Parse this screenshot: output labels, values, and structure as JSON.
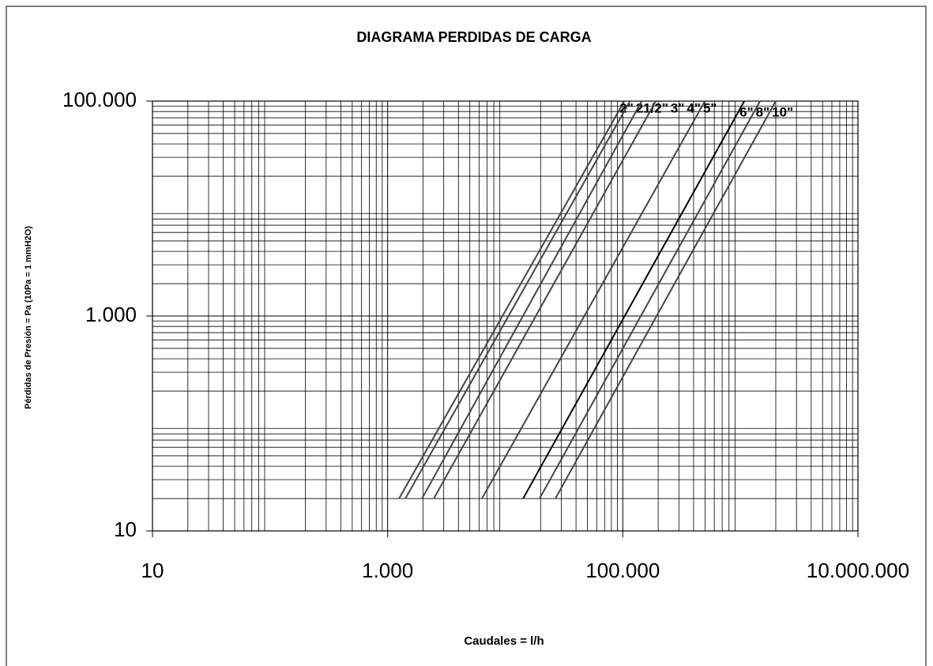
{
  "chart_data": {
    "type": "line",
    "title": "DIAGRAMA PERDIDAS DE CARGA",
    "x_label": "Caudales = l/h",
    "y_label": "Pérdidas de Presión = Pa (10Pa = 1 mmH2O)",
    "xscale": "log",
    "yscale": "log",
    "grid": true,
    "minor_grid": true,
    "xlim": [
      10,
      10000000
    ],
    "ylim": [
      10,
      100000
    ],
    "xticks": [
      10,
      {
        "value": 1000,
        "label": "1.000"
      },
      {
        "value": 100000,
        "label": "100.000"
      },
      {
        "value": 10000000,
        "label": "10.000.000"
      }
    ],
    "yticks": [
      10,
      {
        "value": 1000,
        "label": "1.000"
      },
      {
        "value": 100000,
        "label": "100.000"
      }
    ],
    "series": [
      {
        "name": "2\"",
        "color": "#444444",
        "x": [
          1250,
          103000
        ],
        "values": [
          20,
          100000
        ]
      },
      {
        "name": "21/2\"",
        "color": "#444444",
        "x": [
          1415,
          115000
        ],
        "values": [
          20,
          100000
        ]
      },
      {
        "name": "3\"",
        "color": "#444444",
        "x": [
          1960,
          145000
        ],
        "values": [
          20,
          100000
        ]
      },
      {
        "name": "4\"",
        "color": "#444444",
        "x": [
          2470,
          191000
        ],
        "values": [
          20,
          100000
        ]
      },
      {
        "name": "5\"",
        "color": "#444444",
        "x": [
          6340,
          499000
        ],
        "values": [
          20,
          100000
        ]
      },
      {
        "name": "6\"",
        "color": "#000000",
        "x": [
          14200,
          1080000
        ],
        "values": [
          20,
          100000
        ]
      },
      {
        "name": "8\"",
        "color": "#444444",
        "x": [
          19600,
          1470000
        ],
        "values": [
          20,
          100000
        ]
      },
      {
        "name": "10\"",
        "color": "#444444",
        "x": [
          26700,
          2000000
        ],
        "values": [
          20,
          100000
        ]
      }
    ]
  }
}
